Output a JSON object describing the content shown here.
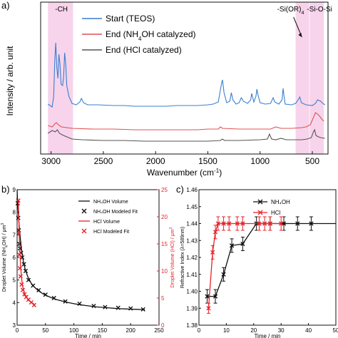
{
  "panel_labels": {
    "a": "a)",
    "b": "b)",
    "c": "c)"
  },
  "colors": {
    "start": "#3a7fd0",
    "nh4oh": "#e05050",
    "hcl": "#555555",
    "highlight": "#f4c6e4",
    "black": "#111111",
    "red": "#e8222a"
  },
  "chart_data": [
    {
      "type": "line",
      "panel": "a",
      "xlabel_main": "Wavenumber (cm",
      "xlabel_sup": "-1",
      "xlabel_end": ")",
      "ylabel": "Intensity / arb. unit",
      "xlim": [
        3100,
        350
      ],
      "xticks": [
        3000,
        2500,
        2000,
        1500,
        1000,
        500
      ],
      "highlights": [
        {
          "label": "-CH",
          "from": 3030,
          "to": 2790
        },
        {
          "label": "-Si(OR)",
          "label_sub": "4",
          "from": 660,
          "to": 530
        },
        {
          "label": "-Si-O-Si",
          "from": 525,
          "to": 390
        }
      ],
      "series": [
        {
          "name": "Start (TEOS)",
          "color": "#3a7fd0",
          "points": [
            [
              3030,
              146
            ],
            [
              2990,
              150
            ],
            [
              2975,
              135
            ],
            [
              2965,
              85
            ],
            [
              2955,
              60
            ],
            [
              2945,
              95
            ],
            [
              2935,
              110
            ],
            [
              2925,
              76
            ],
            [
              2915,
              90
            ],
            [
              2905,
              118
            ],
            [
              2890,
              120
            ],
            [
              2880,
              108
            ],
            [
              2870,
              74
            ],
            [
              2860,
              90
            ],
            [
              2850,
              120
            ],
            [
              2830,
              135
            ],
            [
              2800,
              145
            ],
            [
              2760,
              147
            ],
            [
              2725,
              143
            ],
            [
              2710,
              138
            ],
            [
              2690,
              144
            ],
            [
              2650,
              147
            ],
            [
              2550,
              147
            ],
            [
              2400,
              148
            ],
            [
              2300,
              148
            ],
            [
              2200,
              149
            ],
            [
              2000,
              149
            ],
            [
              1900,
              149
            ],
            [
              1800,
              148
            ],
            [
              1700,
              148
            ],
            [
              1600,
              148
            ],
            [
              1500,
              147
            ],
            [
              1450,
              146
            ],
            [
              1400,
              143
            ],
            [
              1370,
              118
            ],
            [
              1360,
              112
            ],
            [
              1345,
              130
            ],
            [
              1320,
              144
            ],
            [
              1290,
              142
            ],
            [
              1275,
              130
            ],
            [
              1260,
              140
            ],
            [
              1230,
              146
            ],
            [
              1200,
              144
            ],
            [
              1180,
              137
            ],
            [
              1160,
              142
            ],
            [
              1120,
              145
            ],
            [
              1090,
              140
            ],
            [
              1080,
              131
            ],
            [
              1060,
              143
            ],
            [
              1040,
              135
            ],
            [
              1030,
              125
            ],
            [
              1020,
              133
            ],
            [
              1000,
              144
            ],
            [
              950,
              146
            ],
            [
              900,
              145
            ],
            [
              875,
              137
            ],
            [
              860,
              143
            ],
            [
              820,
              146
            ],
            [
              790,
              140
            ],
            [
              780,
              124
            ],
            [
              770,
              136
            ],
            [
              760,
              146
            ],
            [
              700,
              147
            ],
            [
              660,
              145
            ],
            [
              640,
              141
            ],
            [
              620,
              136
            ],
            [
              605,
              144
            ],
            [
              560,
              147
            ],
            [
              500,
              148
            ],
            [
              470,
              145
            ],
            [
              450,
              140
            ],
            [
              420,
              142
            ],
            [
              400,
              145
            ],
            [
              380,
              147
            ]
          ]
        },
        {
          "name": "End (NH",
          "name_sub": "4",
          "name_end": "OH catalyzed)",
          "color": "#e05050",
          "points": [
            [
              3030,
              176
            ],
            [
              2990,
              178
            ],
            [
              2960,
              173
            ],
            [
              2950,
              172
            ],
            [
              2930,
              175
            ],
            [
              2900,
              178
            ],
            [
              2800,
              180
            ],
            [
              2600,
              181
            ],
            [
              2400,
              181
            ],
            [
              2200,
              182
            ],
            [
              2000,
              182
            ],
            [
              1800,
              182
            ],
            [
              1600,
              182
            ],
            [
              1500,
              181
            ],
            [
              1400,
              181
            ],
            [
              1380,
              178
            ],
            [
              1360,
              180
            ],
            [
              1200,
              181
            ],
            [
              1000,
              181
            ],
            [
              900,
              181
            ],
            [
              850,
              178
            ],
            [
              800,
              180
            ],
            [
              700,
              180
            ],
            [
              600,
              179
            ],
            [
              560,
              178
            ],
            [
              520,
              175
            ],
            [
              490,
              165
            ],
            [
              470,
              158
            ],
            [
              450,
              160
            ],
            [
              430,
              163
            ],
            [
              410,
              167
            ],
            [
              390,
              170
            ]
          ]
        },
        {
          "name": "End (HCl catalyzed)",
          "color": "#555555",
          "points": [
            [
              3030,
              187
            ],
            [
              2990,
              183
            ],
            [
              2960,
              185
            ],
            [
              2940,
              182
            ],
            [
              2920,
              187
            ],
            [
              2880,
              190
            ],
            [
              2800,
              195
            ],
            [
              2700,
              196
            ],
            [
              2500,
              197
            ],
            [
              2300,
              197
            ],
            [
              2100,
              198
            ],
            [
              1900,
              198
            ],
            [
              1700,
              198
            ],
            [
              1500,
              198
            ],
            [
              1380,
              197
            ],
            [
              1360,
              195
            ],
            [
              1340,
              197
            ],
            [
              1200,
              197
            ],
            [
              1000,
              196
            ],
            [
              930,
              195
            ],
            [
              910,
              188
            ],
            [
              890,
              195
            ],
            [
              850,
              196
            ],
            [
              800,
              194
            ],
            [
              750,
              196
            ],
            [
              700,
              196
            ],
            [
              600,
              196
            ],
            [
              550,
              195
            ],
            [
              510,
              193
            ],
            [
              490,
              185
            ],
            [
              478,
              182
            ],
            [
              465,
              190
            ],
            [
              440,
              192
            ],
            [
              420,
              193
            ],
            [
              380,
              194
            ]
          ]
        }
      ]
    },
    {
      "type": "scatter",
      "panel": "b",
      "xlabel": "Time / min",
      "ylabel_left": "Droplet Volume (NH",
      "ylabel_left_sub": "4",
      "ylabel_left_end": "OH) / μm",
      "ylabel_left_sup": "3",
      "ylabel_right": "Droplet Volume (HCl) / μm",
      "ylabel_right_sup": "3",
      "xlim": [
        0,
        250
      ],
      "ylim_left": [
        3,
        9
      ],
      "ylim_right": [
        0,
        25
      ],
      "xticks": [
        0,
        50,
        100,
        150,
        200,
        250
      ],
      "yticks_left": [
        3,
        4,
        5,
        6,
        7,
        8,
        9
      ],
      "yticks_right": [
        0,
        5,
        10,
        15,
        20,
        25
      ],
      "series": [
        {
          "name": "NH₄OH Volume",
          "axis": "left",
          "style": "line",
          "color": "#111111",
          "x": [
            0,
            1,
            2,
            3,
            4,
            5,
            6,
            7,
            8,
            9,
            10,
            12,
            14,
            16,
            18,
            20,
            25,
            30,
            35,
            40,
            45,
            50,
            60,
            70,
            80,
            90,
            100,
            110,
            120,
            130,
            140,
            150,
            160,
            170,
            180,
            190,
            200,
            210,
            220,
            225
          ],
          "y": [
            9.0,
            8.4,
            8.0,
            7.6,
            7.3,
            7.0,
            6.75,
            6.5,
            6.3,
            6.1,
            5.95,
            5.7,
            5.5,
            5.35,
            5.2,
            5.08,
            4.85,
            4.7,
            4.58,
            4.48,
            4.4,
            4.33,
            4.22,
            4.13,
            4.06,
            4.0,
            3.95,
            3.91,
            3.87,
            3.84,
            3.81,
            3.79,
            3.77,
            3.75,
            3.73,
            3.72,
            3.71,
            3.7,
            3.69,
            3.68
          ]
        },
        {
          "name": "NH₄OH Modeled Fit",
          "axis": "left",
          "style": "x",
          "color": "#111111",
          "x": [
            1,
            2,
            3,
            4,
            5,
            7,
            9,
            12,
            15,
            20,
            28,
            38,
            50,
            65,
            85,
            110,
            135,
            155,
            178,
            200,
            222
          ],
          "y": [
            8.4,
            7.75,
            7.2,
            6.6,
            6.4,
            6.2,
            6.0,
            5.7,
            5.4,
            5.0,
            4.75,
            4.55,
            4.35,
            4.2,
            4.05,
            3.95,
            3.85,
            3.8,
            3.77,
            3.74,
            3.7
          ]
        },
        {
          "name": "HCl Volume",
          "axis": "right",
          "style": "line",
          "color": "#e8222a",
          "x": [
            2,
            4,
            6,
            8,
            10,
            12,
            14,
            16,
            18,
            20,
            25,
            30
          ],
          "y": [
            23,
            16,
            11,
            8.5,
            7,
            6.2,
            5.6,
            5.2,
            4.9,
            4.6,
            4.2,
            3.9
          ]
        },
        {
          "name": "HCl Modeled Fit",
          "axis": "right",
          "style": "x",
          "color": "#e8222a",
          "x": [
            2,
            3,
            4,
            5,
            6,
            8,
            10,
            13,
            16,
            20,
            25,
            30
          ],
          "y": [
            23,
            17,
            13,
            10.5,
            9,
            7.5,
            6.5,
            5.7,
            5.2,
            4.7,
            4.2,
            3.7
          ]
        }
      ]
    },
    {
      "type": "line",
      "panel": "c",
      "xlabel": "Time / min",
      "ylabel": "Refractive Index (λ=589nm)",
      "xlim": [
        0,
        50
      ],
      "ylim": [
        1.38,
        1.46
      ],
      "xticks": [
        0,
        10,
        20,
        30,
        40,
        50
      ],
      "yticks": [
        1.38,
        1.39,
        1.4,
        1.41,
        1.42,
        1.43,
        1.44,
        1.45,
        1.46
      ],
      "series": [
        {
          "name": "NH₄OH",
          "color": "#111111",
          "x": [
            3,
            6,
            9,
            12,
            16,
            21,
            26,
            31,
            36,
            41,
            50
          ],
          "y": [
            1.397,
            1.397,
            1.41,
            1.427,
            1.428,
            1.44,
            1.44,
            1.44,
            1.44,
            1.44,
            1.44
          ],
          "err": [
            0.004,
            0.004,
            0.004,
            0.004,
            0.004,
            0.004,
            0.004,
            0.004,
            0.004,
            0.004,
            0
          ]
        },
        {
          "name": "HCl",
          "color": "#e8222a",
          "x": [
            3.5,
            5,
            6,
            7,
            9,
            11,
            14,
            16,
            22,
            24,
            26,
            30
          ],
          "y": [
            1.39,
            1.423,
            1.435,
            1.44,
            1.44,
            1.44,
            1.44,
            1.44,
            1.44,
            1.44,
            1.44,
            1.44
          ],
          "err": [
            0.003,
            0.004,
            0.004,
            0.004,
            0.004,
            0.004,
            0.004,
            0.004,
            0.004,
            0.004,
            0.004,
            0.004
          ]
        }
      ]
    }
  ]
}
